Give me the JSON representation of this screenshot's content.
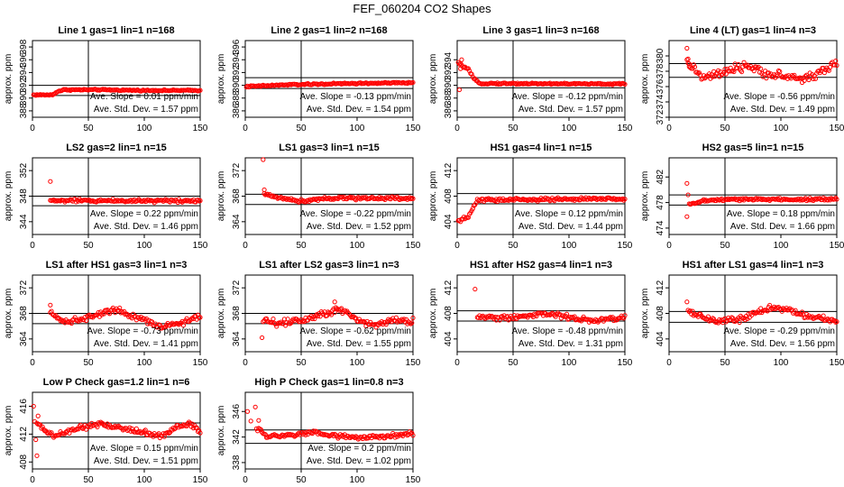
{
  "figure_title": "FEF_060204  CO2 Shapes",
  "chart_data": [
    {
      "type": "scatter",
      "title": "Line 1 gas=1 lin=1 n=168",
      "ylabel": "approx. ppm",
      "xlim": [
        0,
        150
      ],
      "xticks": [
        0,
        50,
        100,
        150
      ],
      "ylim": [
        387,
        399
      ],
      "yticks": [
        388,
        390,
        392,
        394,
        396,
        398
      ],
      "hlines": [
        390.4,
        392.0
      ],
      "vline": 50,
      "color": "#ff0000",
      "stat_slope": "Ave. Slope =  0.01  ppm/min",
      "stat_std": "Ave. Std. Dev. =  1.57  ppm",
      "points": {
        "x_start": 1,
        "x_end": 150,
        "anchors": [
          [
            1,
            390.5
          ],
          [
            18,
            390.5
          ],
          [
            22,
            391.0
          ],
          [
            28,
            391.3
          ],
          [
            60,
            391.3
          ],
          [
            100,
            391.2
          ],
          [
            150,
            391.2
          ]
        ],
        "noise": 0.1
      }
    },
    {
      "type": "scatter",
      "title": "Line 2 gas=1 lin=2 n=168",
      "ylabel": "approx. ppm",
      "xlim": [
        0,
        150
      ],
      "xticks": [
        0,
        50,
        100,
        150
      ],
      "ylim": [
        385,
        397
      ],
      "yticks": [
        386,
        388,
        390,
        392,
        394,
        396
      ],
      "hlines": [
        389.5,
        391.2
      ],
      "vline": 50,
      "color": "#ff0000",
      "stat_slope": "Ave. Slope = -0.13  ppm/min",
      "stat_std": "Ave. Std. Dev. =  1.54  ppm",
      "points": {
        "x_start": 1,
        "x_end": 150,
        "anchors": [
          [
            1,
            389.8
          ],
          [
            40,
            390.1
          ],
          [
            100,
            390.3
          ],
          [
            150,
            390.4
          ]
        ],
        "noise": 0.12
      }
    },
    {
      "type": "scatter",
      "title": "Line 3 gas=1 lin=3 n=168",
      "ylabel": "approx. ppm",
      "xlim": [
        0,
        150
      ],
      "xticks": [
        0,
        50,
        100,
        150
      ],
      "ylim": [
        385,
        397
      ],
      "yticks": [
        386,
        388,
        390,
        392,
        394
      ],
      "hlines": [
        389.6,
        391.2
      ],
      "vline": 50,
      "color": "#ff0000",
      "stat_slope": "Ave. Slope = -0.12  ppm/min",
      "stat_std": "Ave. Std. Dev. =  1.57  ppm",
      "points": {
        "x_start": 1,
        "x_end": 150,
        "anchors": [
          [
            1,
            393.5
          ],
          [
            5,
            393.0
          ],
          [
            10,
            392.5
          ],
          [
            15,
            391.0
          ],
          [
            20,
            390.3
          ],
          [
            150,
            390.2
          ]
        ],
        "noise": 0.12
      },
      "extras": [
        [
          2,
          389.3
        ],
        [
          3,
          392.6
        ],
        [
          4,
          394.0
        ],
        [
          6,
          392.8
        ]
      ]
    },
    {
      "type": "scatter",
      "title": "Line 4 (LT) gas=1 lin=4 n=3",
      "ylabel": "approx. ppm",
      "xlim": [
        0,
        150
      ],
      "xticks": [
        0,
        50,
        100,
        150
      ],
      "ylim": [
        372,
        382
      ],
      "yticks": [
        372,
        374,
        376,
        378,
        380
      ],
      "hlines": [
        377.2,
        379.0
      ],
      "vline": 50,
      "color": "#ff0000",
      "stat_slope": "Ave. Slope = -0.56  ppm/min",
      "stat_std": "Ave. Std. Dev. =  1.49  ppm",
      "points": {
        "x_start": 16,
        "x_end": 150,
        "anchors": [
          [
            16,
            379
          ],
          [
            22,
            378.5
          ],
          [
            30,
            377
          ],
          [
            40,
            377.5
          ],
          [
            55,
            378
          ],
          [
            70,
            378.8
          ],
          [
            80,
            378
          ],
          [
            95,
            377.5
          ],
          [
            110,
            377.2
          ],
          [
            120,
            377
          ],
          [
            130,
            377.5
          ],
          [
            140,
            378.3
          ],
          [
            150,
            379
          ]
        ],
        "noise": 0.55
      },
      "extras": [
        [
          16,
          381.0
        ],
        [
          17,
          379.6
        ],
        [
          18,
          378.6
        ]
      ]
    },
    {
      "type": "scatter",
      "title": "LS2 gas=2 lin=1 n=15",
      "ylabel": "approx. ppm",
      "xlim": [
        0,
        150
      ],
      "xticks": [
        0,
        50,
        100,
        150
      ],
      "ylim": [
        342,
        354
      ],
      "yticks": [
        344,
        348,
        352
      ],
      "hlines": [
        346.5,
        348.0
      ],
      "vline": 50,
      "color": "#ff0000",
      "stat_slope": "Ave. Slope =  0.22  ppm/min",
      "stat_std": "Ave. Std. Dev. =  1.46  ppm",
      "points": {
        "x_start": 16,
        "x_end": 150,
        "anchors": [
          [
            16,
            347.3
          ],
          [
            150,
            347.3
          ]
        ],
        "noise": 0.25
      },
      "extras": [
        [
          16,
          350.3
        ]
      ]
    },
    {
      "type": "scatter",
      "title": "LS1 gas=3 lin=1 n=15",
      "ylabel": "approx. ppm",
      "xlim": [
        0,
        150
      ],
      "xticks": [
        0,
        50,
        100,
        150
      ],
      "ylim": [
        362,
        374
      ],
      "yticks": [
        364,
        368,
        372
      ],
      "hlines": [
        366.7,
        368.3
      ],
      "vline": 50,
      "color": "#ff0000",
      "stat_slope": "Ave. Slope = -0.22  ppm/min",
      "stat_std": "Ave. Std. Dev. =  1.52  ppm",
      "points": {
        "x_start": 17,
        "x_end": 150,
        "anchors": [
          [
            17,
            368.3
          ],
          [
            30,
            367.8
          ],
          [
            50,
            367.2
          ],
          [
            70,
            367.7
          ],
          [
            150,
            367.7
          ]
        ],
        "noise": 0.25
      },
      "extras": [
        [
          16,
          374.0
        ],
        [
          17,
          369.0
        ]
      ]
    },
    {
      "type": "scatter",
      "title": "HS1 gas=4 lin=1 n=15",
      "ylabel": "approx. ppm",
      "xlim": [
        0,
        150
      ],
      "xticks": [
        0,
        50,
        100,
        150
      ],
      "ylim": [
        402,
        414
      ],
      "yticks": [
        404,
        408,
        412
      ],
      "hlines": [
        406.8,
        408.4
      ],
      "vline": 50,
      "color": "#ff0000",
      "stat_slope": "Ave. Slope =  0.12  ppm/min",
      "stat_std": "Ave. Std. Dev. =  1.44  ppm",
      "points": {
        "x_start": 1,
        "x_end": 150,
        "anchors": [
          [
            1,
            404.0
          ],
          [
            10,
            404.8
          ],
          [
            14,
            406.0
          ],
          [
            18,
            407.4
          ],
          [
            150,
            407.6
          ]
        ],
        "noise": 0.25
      }
    },
    {
      "type": "scatter",
      "title": "HS2 gas=5 lin=1 n=15",
      "ylabel": "approx. ppm",
      "xlim": [
        0,
        150
      ],
      "xticks": [
        0,
        50,
        100,
        150
      ],
      "ylim": [
        473,
        485
      ],
      "yticks": [
        474,
        478,
        482
      ],
      "hlines": [
        477.6,
        479.2
      ],
      "vline": 50,
      "color": "#ff0000",
      "stat_slope": "Ave. Slope =  0.18  ppm/min",
      "stat_std": "Ave. Std. Dev. =  1.66  ppm",
      "points": {
        "x_start": 18,
        "x_end": 150,
        "anchors": [
          [
            18,
            477.6
          ],
          [
            30,
            478.3
          ],
          [
            60,
            478.5
          ],
          [
            150,
            478.5
          ]
        ],
        "noise": 0.22
      },
      "extras": [
        [
          16,
          481.0
        ],
        [
          16,
          475.8
        ],
        [
          17,
          479.2
        ]
      ]
    },
    {
      "type": "scatter",
      "title": "LS1 after HS1 gas=3 lin=1 n=3",
      "ylabel": "approx. ppm",
      "xlim": [
        0,
        150
      ],
      "xticks": [
        0,
        50,
        100,
        150
      ],
      "ylim": [
        362,
        374
      ],
      "yticks": [
        364,
        368,
        372
      ],
      "hlines": [
        366.4,
        368.0
      ],
      "vline": 50,
      "color": "#ff0000",
      "stat_slope": "Ave. Slope = -0.73  ppm/min",
      "stat_std": "Ave. Std. Dev. =  1.41  ppm",
      "points": {
        "x_start": 16,
        "x_end": 150,
        "anchors": [
          [
            16,
            368.5
          ],
          [
            25,
            366.8
          ],
          [
            40,
            366.9
          ],
          [
            60,
            368
          ],
          [
            75,
            368.7
          ],
          [
            90,
            367.6
          ],
          [
            105,
            366.7
          ],
          [
            115,
            365.8
          ],
          [
            130,
            366.4
          ],
          [
            150,
            367.6
          ]
        ],
        "noise": 0.45
      },
      "extras": [
        [
          16,
          369.3
        ]
      ]
    },
    {
      "type": "scatter",
      "title": "LS1 after LS2 gas=3 lin=1 n=3",
      "ylabel": "approx. ppm",
      "xlim": [
        0,
        150
      ],
      "xticks": [
        0,
        50,
        100,
        150
      ],
      "ylim": [
        362,
        374
      ],
      "yticks": [
        364,
        368,
        372
      ],
      "hlines": [
        366.4,
        368.0
      ],
      "vline": 50,
      "color": "#ff0000",
      "stat_slope": "Ave. Slope = -0.62  ppm/min",
      "stat_std": "Ave. Std. Dev. =  1.55  ppm",
      "points": {
        "x_start": 16,
        "x_end": 150,
        "anchors": [
          [
            16,
            367
          ],
          [
            30,
            366.4
          ],
          [
            50,
            367
          ],
          [
            70,
            368
          ],
          [
            85,
            368.8
          ],
          [
            100,
            367
          ],
          [
            115,
            366.2
          ],
          [
            130,
            367
          ],
          [
            150,
            366.8
          ]
        ],
        "noise": 0.55
      },
      "extras": [
        [
          15,
          364.2
        ],
        [
          80,
          369.8
        ]
      ]
    },
    {
      "type": "scatter",
      "title": "HS1 after HS2 gas=4 lin=1 n=3",
      "ylabel": "approx. ppm",
      "xlim": [
        0,
        150
      ],
      "xticks": [
        0,
        50,
        100,
        150
      ],
      "ylim": [
        402,
        414
      ],
      "yticks": [
        404,
        408,
        412
      ],
      "hlines": [
        406.8,
        408.4
      ],
      "vline": 50,
      "color": "#ff0000",
      "stat_slope": "Ave. Slope = -0.48  ppm/min",
      "stat_std": "Ave. Std. Dev. =  1.31  ppm",
      "points": {
        "x_start": 18,
        "x_end": 150,
        "anchors": [
          [
            18,
            407.5
          ],
          [
            40,
            407.3
          ],
          [
            60,
            407.6
          ],
          [
            80,
            408.0
          ],
          [
            100,
            407.4
          ],
          [
            120,
            406.8
          ],
          [
            140,
            407.2
          ],
          [
            150,
            407.4
          ]
        ],
        "noise": 0.4
      },
      "extras": [
        [
          16,
          411.8
        ]
      ]
    },
    {
      "type": "scatter",
      "title": "HS1 after LS1 gas=4 lin=1 n=3",
      "ylabel": "approx. ppm",
      "xlim": [
        0,
        150
      ],
      "xticks": [
        0,
        50,
        100,
        150
      ],
      "ylim": [
        402,
        414
      ],
      "yticks": [
        404,
        408,
        412
      ],
      "hlines": [
        406.6,
        408.3
      ],
      "vline": 50,
      "color": "#ff0000",
      "stat_slope": "Ave. Slope = -0.29  ppm/min",
      "stat_std": "Ave. Std. Dev. =  1.56  ppm",
      "points": {
        "x_start": 18,
        "x_end": 150,
        "anchors": [
          [
            18,
            408.3
          ],
          [
            35,
            407
          ],
          [
            50,
            406.8
          ],
          [
            65,
            407.2
          ],
          [
            80,
            408.2
          ],
          [
            95,
            409
          ],
          [
            110,
            408.4
          ],
          [
            125,
            407.5
          ],
          [
            140,
            407.2
          ],
          [
            150,
            406.6
          ]
        ],
        "noise": 0.45
      },
      "extras": [
        [
          16,
          409.8
        ],
        [
          17,
          408.5
        ]
      ]
    },
    {
      "type": "scatter",
      "title": "Low P Check gas=1.2 lin=1 n=6",
      "ylabel": "approx. ppm",
      "xlim": [
        0,
        150
      ],
      "xticks": [
        0,
        50,
        100,
        150
      ],
      "ylim": [
        407,
        418
      ],
      "yticks": [
        408,
        412,
        416
      ],
      "hlines": [
        411.6,
        413.6
      ],
      "vline": 50,
      "color": "#ff0000",
      "stat_slope": "Ave. Slope =  0.15  ppm/min",
      "stat_std": "Ave. Std. Dev. =  1.51  ppm",
      "points": {
        "x_start": 4,
        "x_end": 150,
        "anchors": [
          [
            4,
            413.5
          ],
          [
            12,
            412.5
          ],
          [
            20,
            411.7
          ],
          [
            40,
            412.8
          ],
          [
            60,
            413.4
          ],
          [
            80,
            412.8
          ],
          [
            100,
            412.3
          ],
          [
            115,
            411.7
          ],
          [
            130,
            413
          ],
          [
            140,
            413.6
          ],
          [
            150,
            412.3
          ]
        ],
        "noise": 0.35
      },
      "extras": [
        [
          1,
          416.0
        ],
        [
          2,
          413.8
        ],
        [
          3,
          411.2
        ],
        [
          4,
          408.9
        ],
        [
          5,
          414.6
        ]
      ]
    },
    {
      "type": "scatter",
      "title": "High P Check gas=1 lin=0.8 n=3",
      "ylabel": "approx. ppm",
      "xlim": [
        0,
        150
      ],
      "xticks": [
        0,
        50,
        100,
        150
      ],
      "ylim": [
        337,
        349
      ],
      "yticks": [
        338,
        342,
        346
      ],
      "hlines": [
        341.0,
        343.1
      ],
      "vline": 50,
      "color": "#ff0000",
      "stat_slope": "Ave. Slope =  0.2  ppm/min",
      "stat_std": "Ave. Std. Dev. =  1.02  ppm",
      "points": {
        "x_start": 10,
        "x_end": 150,
        "anchors": [
          [
            10,
            343.5
          ],
          [
            20,
            342.0
          ],
          [
            40,
            342.3
          ],
          [
            60,
            342.6
          ],
          [
            80,
            342.2
          ],
          [
            100,
            341.9
          ],
          [
            120,
            342.1
          ],
          [
            150,
            342.5
          ]
        ],
        "noise": 0.35
      },
      "extras": [
        [
          2,
          346.0
        ],
        [
          5,
          344.5
        ],
        [
          9,
          346.7
        ],
        [
          12,
          344.6
        ]
      ]
    }
  ]
}
